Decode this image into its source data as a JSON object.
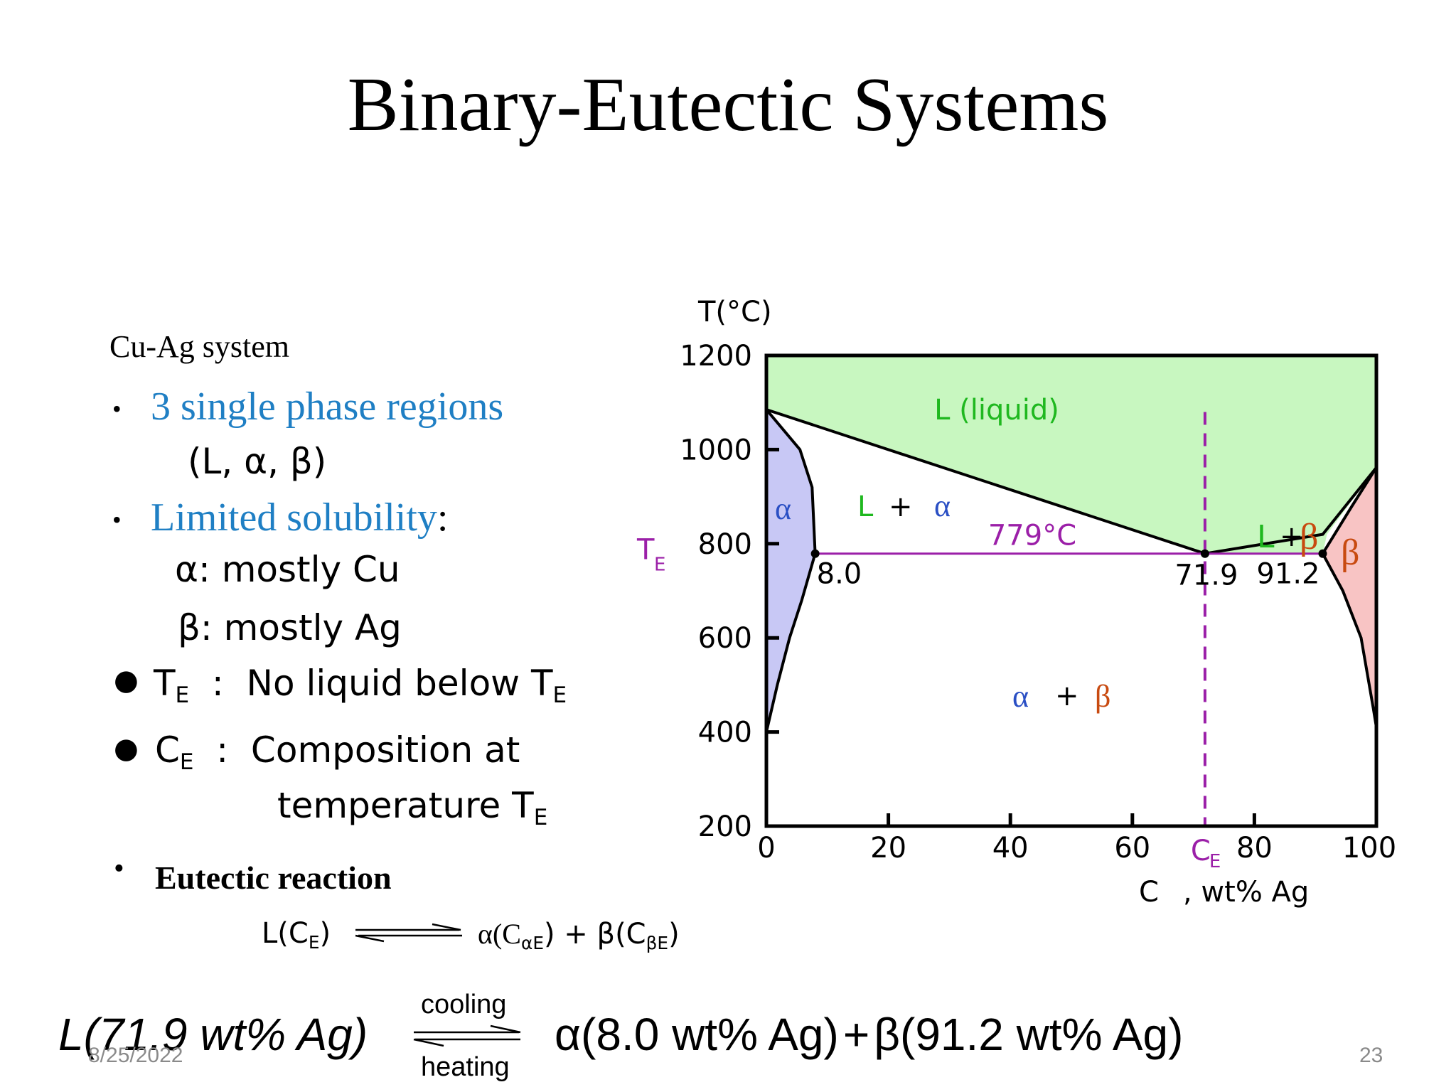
{
  "slide": {
    "title": "Binary-Eutectic Systems",
    "date": "8/25/2022",
    "page_number": "23"
  },
  "left_text": {
    "system": "Cu-Ag system",
    "b1_main": "3 single phase regions",
    "b1_sub": "(L, α, β)",
    "b2_main": "Limited solubility",
    "b2_colon": ":",
    "alpha_line": "α:  mostly Cu",
    "beta_line": "β:  mostly Ag",
    "te_symbol": "T",
    "te_sub": "E",
    "te_text": "  :  No liquid below T",
    "te_text_sub": "E",
    "ce_symbol": "C",
    "ce_sub": "E",
    "ce_text": "  :  Composition at",
    "ce_text2": "temperature T",
    "ce_text2_sub": "E",
    "eutectic_label": "Eutectic reaction"
  },
  "reaction_small": {
    "left": "L(C",
    "left_sub": "E",
    "left_close": ")",
    "right_a": "α(C",
    "right_a_sub": "αE",
    "right_mid": ") + β(C",
    "right_b_sub": "βE",
    "right_close": ")"
  },
  "reaction_big": {
    "left": "L(71.9 wt% Ag)",
    "top_label": "cooling",
    "bottom_label": "heating",
    "right_a": "α(8.0 wt% Ag)",
    "plus": "+",
    "right_b": "β(91.2 wt% Ag)"
  },
  "chart_data": {
    "type": "phase-diagram",
    "ylabel": "T(°C)",
    "xlabel_pre": "C",
    "xlabel_post": ",  wt% Ag",
    "xlim": [
      0,
      100
    ],
    "ylim": [
      200,
      1200
    ],
    "x_ticks": [
      0,
      20,
      40,
      60,
      80,
      100
    ],
    "y_ticks": [
      200,
      400,
      600,
      800,
      1000,
      1200
    ],
    "ce_tick_label": "C",
    "ce_tick_sub": "E",
    "te_label": "T",
    "te_sub": "E",
    "eutectic_temperature": 779,
    "eutectic_temperature_label": "779°C",
    "eutectic_composition": 71.9,
    "alpha_solvus_max": 8.0,
    "beta_solvus_max": 91.2,
    "point_labels": [
      "8.0",
      "71.9",
      "91.2"
    ],
    "melting_point_cu": 1085,
    "melting_point_ag": 962,
    "region_labels": {
      "liquid": "L (liquid)",
      "alpha": "α",
      "beta": "β",
      "l_alpha_L": "L",
      "l_alpha_plus": "+",
      "l_alpha_a": "α",
      "l_beta_L": "L",
      "l_beta_plus": "+",
      "l_beta_b": "β",
      "ab_a": "α",
      "ab_plus": "+",
      "ab_b": "β"
    },
    "colors": {
      "liquid": "#c8f7c0",
      "alpha": "#c8c8f5",
      "beta": "#f8c4c4",
      "eutectic_line": "#9b1fa8",
      "green_text": "#1fb81f",
      "blue_text": "#2a4fc4",
      "orange_text": "#c84a10",
      "purple_text": "#9b1fa8"
    },
    "liquidus_left": [
      [
        0,
        1085
      ],
      [
        71.9,
        779
      ]
    ],
    "liquidus_right": [
      [
        71.9,
        779
      ],
      [
        91.2,
        779
      ],
      [
        91.9,
        820
      ],
      [
        100,
        962
      ]
    ],
    "alpha_solidus": [
      [
        0,
        1085
      ],
      [
        5.5,
        1000
      ],
      [
        7.5,
        920
      ],
      [
        8.0,
        779
      ]
    ],
    "alpha_solvus": [
      [
        8.0,
        779
      ],
      [
        5.8,
        680
      ],
      [
        3.8,
        600
      ],
      [
        1.8,
        500
      ],
      [
        0,
        400
      ]
    ],
    "beta_solidus": [
      [
        91.2,
        779
      ],
      [
        96,
        880
      ],
      [
        100,
        962
      ]
    ],
    "beta_solvus": [
      [
        91.2,
        779
      ],
      [
        94.5,
        700
      ],
      [
        97.5,
        600
      ],
      [
        99.5,
        450
      ],
      [
        100,
        410
      ]
    ]
  }
}
